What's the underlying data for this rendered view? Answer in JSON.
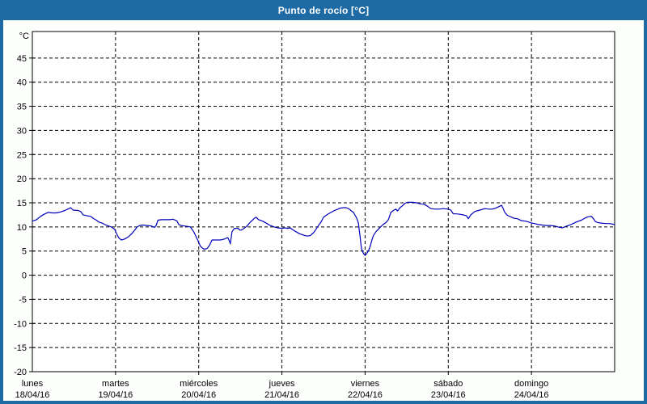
{
  "window": {
    "title": "Punto de rocío [°C]"
  },
  "colors": {
    "titlebar_bg": "#1d6aa5",
    "frame": "#1d6aa5",
    "title_text": "#ffffff",
    "content_bg": "#fdfffd",
    "plot_bg": "#ffffff",
    "axis": "#000000",
    "grid": "#000000",
    "label_text": "#000000",
    "line": "#0000bb"
  },
  "chart_data": {
    "type": "line",
    "title": "Punto de rocío [°C]",
    "ylabel": "°C",
    "ylim": [
      -20,
      50.5
    ],
    "y_ticks": [
      45,
      40,
      35,
      30,
      25,
      20,
      15,
      10,
      5,
      0,
      -5,
      -10,
      -15,
      -20
    ],
    "grid": "dashed",
    "legend": "none",
    "x_axis": {
      "span_days": 7,
      "days": [
        {
          "name": "lunes",
          "date": "18/04/16"
        },
        {
          "name": "martes",
          "date": "19/04/16"
        },
        {
          "name": "miércoles",
          "date": "20/04/16"
        },
        {
          "name": "jueves",
          "date": "21/04/16"
        },
        {
          "name": "viernes",
          "date": "22/04/16"
        },
        {
          "name": "sábado",
          "date": "23/04/16"
        },
        {
          "name": "domingo",
          "date": "24/04/16"
        }
      ]
    },
    "series": [
      {
        "name": "Punto de rocío",
        "color": "#0000bb",
        "points": [
          [
            0,
            11.2
          ],
          [
            0.05,
            11.5
          ],
          [
            0.1,
            12.2
          ],
          [
            0.15,
            12.7
          ],
          [
            0.19,
            13
          ],
          [
            0.24,
            12.9
          ],
          [
            0.29,
            12.9
          ],
          [
            0.34,
            13.1
          ],
          [
            0.39,
            13.4
          ],
          [
            0.44,
            13.8
          ],
          [
            0.46,
            14
          ],
          [
            0.49,
            13.5
          ],
          [
            0.55,
            13.4
          ],
          [
            0.58,
            13.2
          ],
          [
            0.61,
            12.5
          ],
          [
            0.66,
            12.3
          ],
          [
            0.7,
            12.2
          ],
          [
            0.73,
            11.8
          ],
          [
            0.77,
            11.4
          ],
          [
            0.8,
            11
          ],
          [
            0.84,
            10.8
          ],
          [
            0.87,
            10.5
          ],
          [
            0.9,
            10.3
          ],
          [
            0.95,
            10
          ],
          [
            0.99,
            9.5
          ],
          [
            1.01,
            8.7
          ],
          [
            1.04,
            7.7
          ],
          [
            1.07,
            7.3
          ],
          [
            1.11,
            7.5
          ],
          [
            1.15,
            7.9
          ],
          [
            1.19,
            8.5
          ],
          [
            1.23,
            9.3
          ],
          [
            1.26,
            10
          ],
          [
            1.29,
            10.3
          ],
          [
            1.33,
            10.4
          ],
          [
            1.38,
            10.3
          ],
          [
            1.43,
            10.2
          ],
          [
            1.47,
            9.9
          ],
          [
            1.49,
            10.4
          ],
          [
            1.51,
            11.4
          ],
          [
            1.55,
            11.5
          ],
          [
            1.6,
            11.5
          ],
          [
            1.65,
            11.5
          ],
          [
            1.69,
            11.6
          ],
          [
            1.72,
            11.4
          ],
          [
            1.74,
            11.2
          ],
          [
            1.76,
            10.5
          ],
          [
            1.79,
            10.3
          ],
          [
            1.83,
            10.2
          ],
          [
            1.87,
            10.1
          ],
          [
            1.9,
            10
          ],
          [
            1.94,
            9
          ],
          [
            1.99,
            7.2
          ],
          [
            2.02,
            6
          ],
          [
            2.05,
            5.5
          ],
          [
            2.07,
            5.4
          ],
          [
            2.1,
            5.5
          ],
          [
            2.13,
            6.2
          ],
          [
            2.16,
            7.3
          ],
          [
            2.21,
            7.3
          ],
          [
            2.26,
            7.3
          ],
          [
            2.31,
            7.5
          ],
          [
            2.35,
            7.8
          ],
          [
            2.37,
            7
          ],
          [
            2.38,
            6.5
          ],
          [
            2.4,
            9
          ],
          [
            2.43,
            9.7
          ],
          [
            2.47,
            9.7
          ],
          [
            2.5,
            9.3
          ],
          [
            2.53,
            9.5
          ],
          [
            2.58,
            10.2
          ],
          [
            2.62,
            11
          ],
          [
            2.67,
            11.8
          ],
          [
            2.69,
            12
          ],
          [
            2.72,
            11.5
          ],
          [
            2.77,
            11.2
          ],
          [
            2.82,
            10.7
          ],
          [
            2.86,
            10.3
          ],
          [
            2.91,
            10
          ],
          [
            2.95,
            9.8
          ],
          [
            3,
            9.7
          ],
          [
            3.03,
            9.8
          ],
          [
            3.07,
            9.7
          ],
          [
            3.1,
            9.8
          ],
          [
            3.13,
            9.4
          ],
          [
            3.17,
            9
          ],
          [
            3.21,
            8.6
          ],
          [
            3.26,
            8.3
          ],
          [
            3.3,
            8.1
          ],
          [
            3.34,
            8.2
          ],
          [
            3.38,
            8.8
          ],
          [
            3.41,
            9.5
          ],
          [
            3.44,
            10.3
          ],
          [
            3.47,
            11
          ],
          [
            3.5,
            12
          ],
          [
            3.54,
            12.5
          ],
          [
            3.58,
            12.9
          ],
          [
            3.62,
            13.3
          ],
          [
            3.66,
            13.6
          ],
          [
            3.7,
            13.9
          ],
          [
            3.74,
            14
          ],
          [
            3.77,
            14
          ],
          [
            3.8,
            13.8
          ],
          [
            3.83,
            13.4
          ],
          [
            3.86,
            13
          ],
          [
            3.88,
            12.4
          ],
          [
            3.9,
            11.8
          ],
          [
            3.92,
            10.8
          ],
          [
            3.93,
            9.3
          ],
          [
            3.94,
            8
          ],
          [
            3.95,
            6.3
          ],
          [
            3.96,
            5.3
          ],
          [
            3.98,
            4.5
          ],
          [
            4,
            4.1
          ],
          [
            4.02,
            4.5
          ],
          [
            4.04,
            5
          ],
          [
            4.06,
            5.9
          ],
          [
            4.08,
            7.2
          ],
          [
            4.1,
            8.2
          ],
          [
            4.13,
            9
          ],
          [
            4.17,
            9.7
          ],
          [
            4.21,
            10.4
          ],
          [
            4.25,
            10.9
          ],
          [
            4.28,
            11.5
          ],
          [
            4.31,
            13
          ],
          [
            4.34,
            13.4
          ],
          [
            4.37,
            13.7
          ],
          [
            4.39,
            13.3
          ],
          [
            4.42,
            14
          ],
          [
            4.45,
            14.4
          ],
          [
            4.48,
            14.9
          ],
          [
            4.51,
            15.1
          ],
          [
            4.55,
            15.1
          ],
          [
            4.58,
            15.1
          ],
          [
            4.62,
            15
          ],
          [
            4.66,
            14.8
          ],
          [
            4.71,
            14.7
          ],
          [
            4.75,
            14.3
          ],
          [
            4.79,
            13.8
          ],
          [
            4.84,
            13.7
          ],
          [
            4.89,
            13.7
          ],
          [
            4.94,
            13.8
          ],
          [
            5,
            13.7
          ],
          [
            5.03,
            13.5
          ],
          [
            5.06,
            12.7
          ],
          [
            5.1,
            12.7
          ],
          [
            5.15,
            12.6
          ],
          [
            5.2,
            12.4
          ],
          [
            5.22,
            12.3
          ],
          [
            5.24,
            11.7
          ],
          [
            5.27,
            12.5
          ],
          [
            5.32,
            13.2
          ],
          [
            5.38,
            13.5
          ],
          [
            5.44,
            13.8
          ],
          [
            5.49,
            13.7
          ],
          [
            5.53,
            13.7
          ],
          [
            5.57,
            13.9
          ],
          [
            5.62,
            14.3
          ],
          [
            5.64,
            14.5
          ],
          [
            5.66,
            13.8
          ],
          [
            5.68,
            13
          ],
          [
            5.71,
            12.4
          ],
          [
            5.75,
            12.1
          ],
          [
            5.79,
            11.8
          ],
          [
            5.83,
            11.7
          ],
          [
            5.88,
            11.3
          ],
          [
            5.93,
            11.2
          ],
          [
            5.97,
            11
          ],
          [
            6,
            10.8
          ],
          [
            6.04,
            10.7
          ],
          [
            6.08,
            10.5
          ],
          [
            6.13,
            10.4
          ],
          [
            6.18,
            10.3
          ],
          [
            6.23,
            10.3
          ],
          [
            6.28,
            10.2
          ],
          [
            6.32,
            10
          ],
          [
            6.37,
            9.8
          ],
          [
            6.41,
            10.1
          ],
          [
            6.46,
            10.4
          ],
          [
            6.5,
            10.7
          ],
          [
            6.55,
            11.1
          ],
          [
            6.6,
            11.4
          ],
          [
            6.64,
            11.8
          ],
          [
            6.68,
            12.1
          ],
          [
            6.72,
            12.2
          ],
          [
            6.75,
            11.6
          ],
          [
            6.77,
            11.1
          ],
          [
            6.8,
            10.9
          ],
          [
            6.84,
            10.8
          ],
          [
            6.89,
            10.7
          ],
          [
            6.94,
            10.7
          ],
          [
            7,
            10.5
          ]
        ]
      }
    ]
  }
}
